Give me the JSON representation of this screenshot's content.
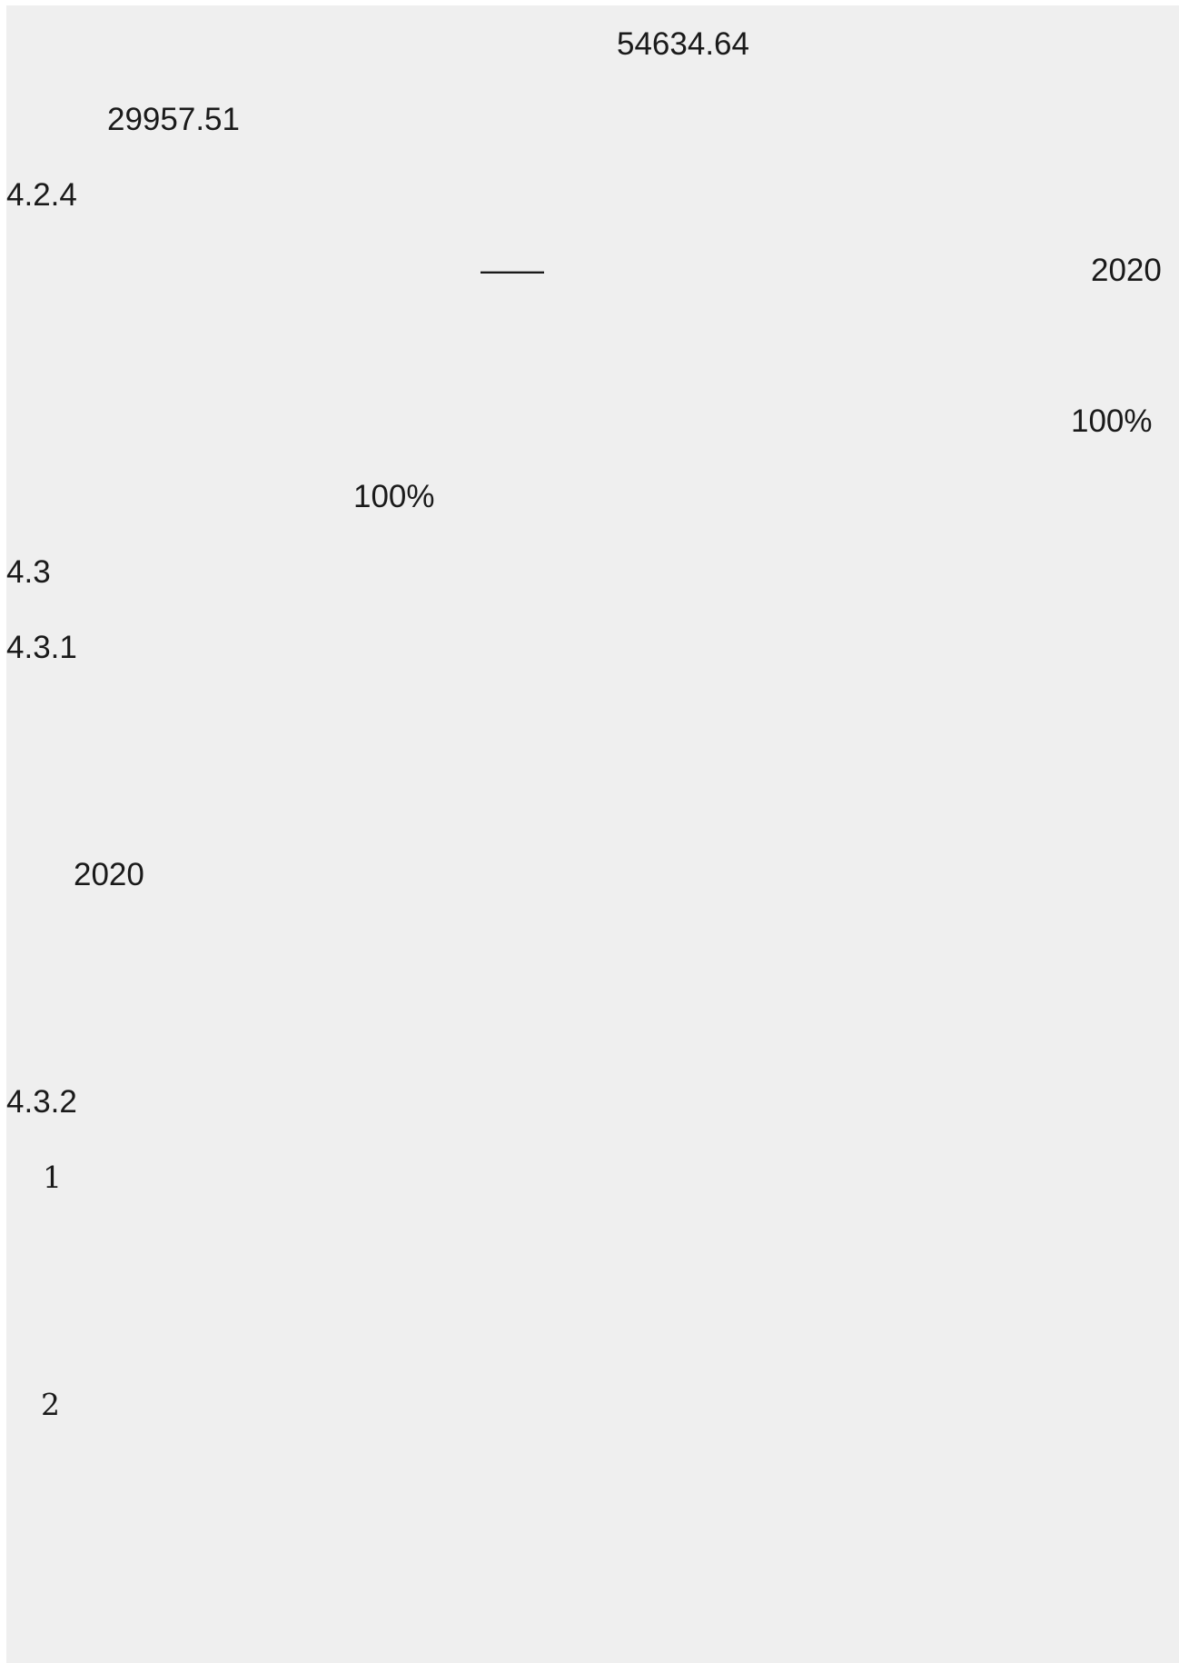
{
  "lines": {
    "amount_a": "54634.64",
    "amount_b": "29957.51",
    "section_424": "4.2.4",
    "dash": "——",
    "year_a": "2020",
    "percent_a": "100%",
    "percent_b": "100%",
    "section_43": "4.3",
    "section_431": "4.3.1",
    "year_b": "2020",
    "section_432": "4.3.2",
    "item_1": "1",
    "item_2": "2"
  }
}
